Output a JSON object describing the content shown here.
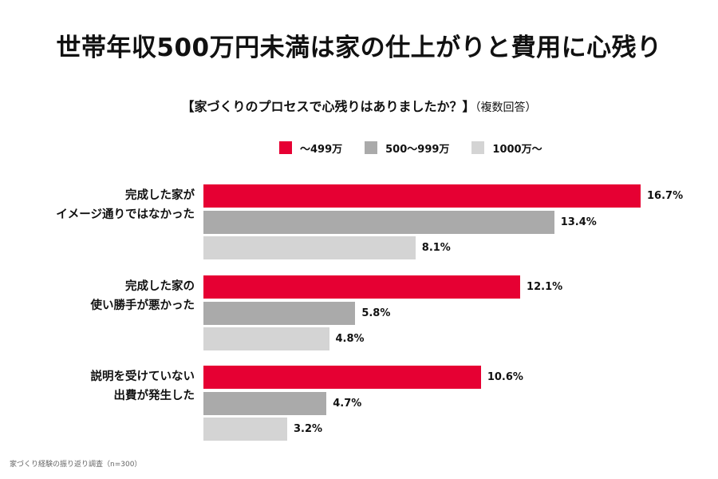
{
  "header": {
    "title": "世帯年収500万円未満は家の仕上がりと費用に心残り"
  },
  "chart_data": {
    "type": "bar",
    "orientation": "horizontal",
    "title": "【家づくりのプロセスで心残りはありましたか？】",
    "title_note": "（複数回答）",
    "categories": [
      [
        "完成した家が",
        "イメージ通りではなかった"
      ],
      [
        "完成した家の",
        "使い勝手が悪かった"
      ],
      [
        "説明を受けていない",
        "出費が発生した"
      ]
    ],
    "series": [
      {
        "name": "～499万",
        "color": "#e60033",
        "values": [
          16.7,
          12.1,
          10.6
        ]
      },
      {
        "name": "500～999万",
        "color": "#aaaaaa",
        "values": [
          13.4,
          5.8,
          4.7
        ]
      },
      {
        "name": "1000万～",
        "color": "#d4d4d4",
        "values": [
          8.1,
          4.8,
          3.2
        ]
      }
    ],
    "value_suffix": "%",
    "xlim": [
      0,
      16.7
    ],
    "grid": false,
    "legend_position": "top"
  },
  "footnote": "家づくり経験の振り返り調査（n=300）"
}
